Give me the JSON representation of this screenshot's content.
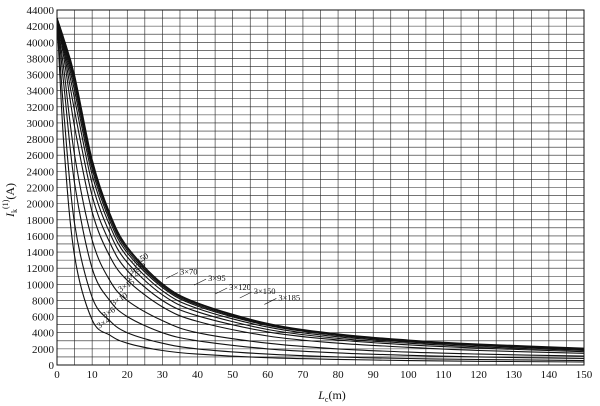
{
  "chart_data": {
    "type": "line",
    "title": "",
    "xlabel": "L_c(m)",
    "xlabel_main": "L",
    "xlabel_sub": "c",
    "xlabel_unit": "(m)",
    "ylabel": "I_k^(1)(A)",
    "ylabel_main": "I",
    "ylabel_sub": "k",
    "ylabel_sup": "(1)",
    "ylabel_unit": "(A)",
    "xlim": [
      0,
      150
    ],
    "ylim": [
      0,
      44000
    ],
    "grid": true,
    "x_ticks": [
      0,
      10,
      20,
      30,
      40,
      50,
      60,
      70,
      80,
      90,
      100,
      110,
      120,
      130,
      140,
      150
    ],
    "y_ticks": [
      0,
      2000,
      4000,
      6000,
      8000,
      10000,
      12000,
      14000,
      16000,
      18000,
      20000,
      22000,
      24000,
      26000,
      28000,
      30000,
      32000,
      34000,
      36000,
      38000,
      40000,
      42000,
      44000
    ],
    "series": [
      {
        "name": "3×4",
        "x": [
          0,
          2,
          5,
          10,
          15,
          20,
          30,
          40,
          60,
          80,
          100,
          120,
          150
        ],
        "values": [
          43000,
          27000,
          13500,
          5600,
          3700,
          2700,
          1800,
          1350,
          900,
          700,
          550,
          460,
          370
        ]
      },
      {
        "name": "3×6",
        "x": [
          0,
          2,
          5,
          10,
          15,
          20,
          30,
          40,
          60,
          80,
          100,
          120,
          150
        ],
        "values": [
          43000,
          31000,
          17500,
          8400,
          5500,
          4000,
          2700,
          2000,
          1350,
          1000,
          800,
          680,
          550
        ]
      },
      {
        "name": "3×10",
        "x": [
          0,
          2,
          5,
          10,
          15,
          20,
          30,
          40,
          60,
          80,
          100,
          120,
          150
        ],
        "values": [
          43000,
          34500,
          22500,
          12000,
          8000,
          6000,
          4000,
          3000,
          2000,
          1500,
          1200,
          1000,
          800
        ]
      },
      {
        "name": "3×15",
        "x": [
          0,
          2,
          5,
          10,
          15,
          20,
          30,
          40,
          60,
          80,
          100,
          120,
          150
        ],
        "values": [
          43000,
          36500,
          26000,
          15500,
          10500,
          8000,
          5500,
          4000,
          2700,
          2000,
          1600,
          1350,
          1100
        ]
      },
      {
        "name": "3×25",
        "x": [
          0,
          2,
          5,
          10,
          15,
          20,
          30,
          40,
          60,
          80,
          100,
          120,
          150
        ],
        "values": [
          43000,
          38000,
          29500,
          19000,
          13500,
          10500,
          7200,
          5400,
          3600,
          2700,
          2200,
          1800,
          1450
        ]
      },
      {
        "name": "3×35",
        "x": [
          0,
          2,
          5,
          10,
          15,
          20,
          30,
          40,
          60,
          80,
          100,
          120,
          150
        ],
        "values": [
          43000,
          38800,
          31500,
          21000,
          15200,
          11700,
          8000,
          6100,
          4100,
          3100,
          2500,
          2100,
          1650
        ]
      },
      {
        "name": "3×50",
        "x": [
          0,
          2,
          5,
          10,
          15,
          20,
          30,
          40,
          60,
          80,
          100,
          120,
          150
        ],
        "values": [
          43000,
          39300,
          33000,
          22500,
          16400,
          12700,
          8700,
          6600,
          4400,
          3300,
          2700,
          2250,
          1800
        ]
      },
      {
        "name": "3×70",
        "x": [
          0,
          2,
          5,
          10,
          15,
          20,
          30,
          40,
          60,
          80,
          100,
          120,
          150
        ],
        "values": [
          43000,
          39700,
          34000,
          23600,
          17300,
          13400,
          9200,
          7000,
          4700,
          3500,
          2850,
          2400,
          1900
        ]
      },
      {
        "name": "3×95",
        "x": [
          0,
          2,
          5,
          10,
          15,
          20,
          30,
          40,
          60,
          80,
          100,
          120,
          150
        ],
        "values": [
          43000,
          40000,
          34700,
          24300,
          17900,
          13900,
          9600,
          7300,
          4900,
          3650,
          2950,
          2450,
          1950
        ]
      },
      {
        "name": "3×120",
        "x": [
          0,
          2,
          5,
          10,
          15,
          20,
          30,
          40,
          60,
          80,
          100,
          120,
          150
        ],
        "values": [
          43000,
          40200,
          35200,
          24800,
          18300,
          14200,
          9800,
          7450,
          5000,
          3750,
          3000,
          2500,
          2000
        ]
      },
      {
        "name": "3×150",
        "x": [
          0,
          2,
          5,
          10,
          15,
          20,
          30,
          40,
          60,
          80,
          100,
          120,
          150
        ],
        "values": [
          43000,
          40300,
          35600,
          25200,
          18600,
          14450,
          9950,
          7600,
          5100,
          3800,
          3050,
          2550,
          2050
        ]
      },
      {
        "name": "3×185",
        "x": [
          0,
          2,
          5,
          10,
          15,
          20,
          30,
          40,
          60,
          80,
          100,
          120,
          150
        ],
        "values": [
          43000,
          40400,
          35900,
          25500,
          18850,
          14650,
          10100,
          7700,
          5150,
          3850,
          3100,
          2600,
          2080
        ]
      }
    ],
    "annotations": [
      {
        "text": "3×4",
        "at": [
          12,
          4500
        ]
      },
      {
        "text": "3×6",
        "at": [
          13.5,
          5800
        ]
      },
      {
        "text": "3×10",
        "at": [
          16,
          7300
        ]
      },
      {
        "text": "3×15",
        "at": [
          18,
          9000
        ]
      },
      {
        "text": "3×25",
        "at": [
          20,
          10300
        ]
      },
      {
        "text": "3×35",
        "at": [
          21,
          11200
        ]
      },
      {
        "text": "3×50",
        "at": [
          22,
          12200
        ]
      },
      {
        "text": "3×70",
        "at": [
          35,
          11200
        ]
      },
      {
        "text": "3×95",
        "at": [
          43,
          10400
        ]
      },
      {
        "text": "3×120",
        "at": [
          49,
          9300
        ]
      },
      {
        "text": "3×150",
        "at": [
          56,
          8800
        ]
      },
      {
        "text": "3×185",
        "at": [
          63,
          8000
        ]
      }
    ]
  }
}
